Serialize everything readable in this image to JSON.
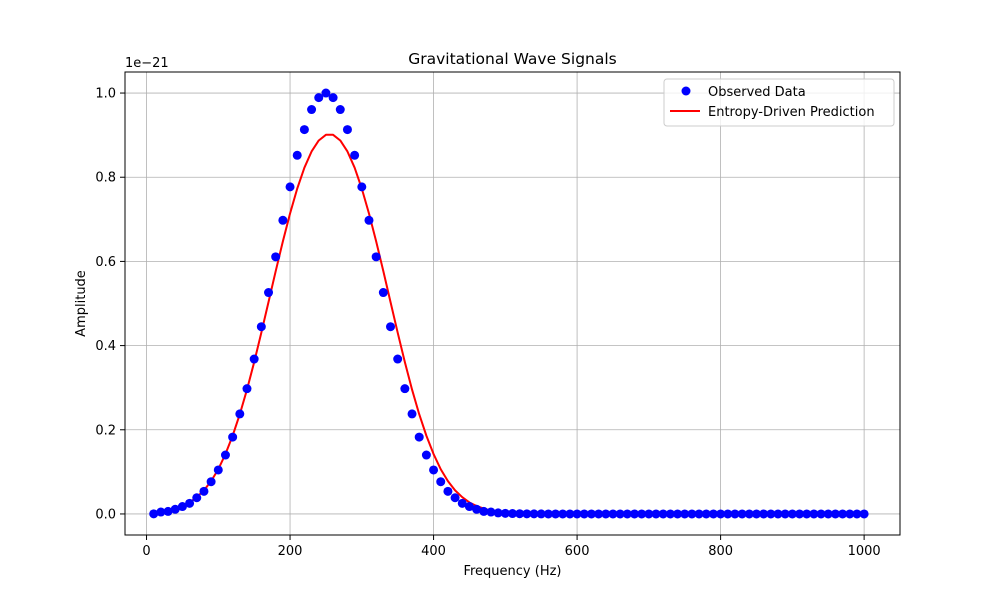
{
  "chart_data": {
    "type": "line",
    "title": "Gravitational Wave Signals",
    "xlabel": "Frequency (Hz)",
    "ylabel": "Amplitude",
    "y_offset_label": "1e−21",
    "xlim": [
      -30,
      1050
    ],
    "ylim": [
      -0.05,
      1.05
    ],
    "x_ticks": [
      0,
      200,
      400,
      600,
      800,
      1000
    ],
    "x_tick_labels": [
      "0",
      "200",
      "400",
      "600",
      "800",
      "1000"
    ],
    "y_ticks": [
      0.0,
      0.2,
      0.4,
      0.6,
      0.8,
      1.0
    ],
    "y_tick_labels": [
      "0.0",
      "0.2",
      "0.4",
      "0.6",
      "0.8",
      "1.0"
    ],
    "grid": true,
    "legend_position": "upper right",
    "series": [
      {
        "name": "Observed Data",
        "style": "markers",
        "color": "#0000ff",
        "x": [
          10,
          20,
          30,
          40,
          50,
          60,
          70,
          80,
          90,
          100,
          110,
          120,
          130,
          140,
          150,
          160,
          170,
          180,
          190,
          200,
          210,
          220,
          230,
          240,
          250,
          260,
          270,
          280,
          290,
          300,
          310,
          320,
          330,
          340,
          350,
          360,
          370,
          380,
          390,
          400,
          410,
          420,
          430,
          440,
          450,
          460,
          470,
          480,
          490,
          500,
          510,
          520,
          530,
          540,
          550,
          560,
          570,
          580,
          590,
          600,
          610,
          620,
          630,
          640,
          650,
          660,
          670,
          680,
          690,
          700,
          710,
          720,
          730,
          740,
          750,
          760,
          770,
          780,
          790,
          800,
          810,
          820,
          830,
          840,
          850,
          860,
          870,
          880,
          890,
          900,
          910,
          920,
          930,
          940,
          950,
          960,
          970,
          980,
          990,
          1000
        ],
        "y": [
          0.0003,
          0.0045,
          0.0061,
          0.0111,
          0.0176,
          0.0252,
          0.0385,
          0.0537,
          0.0766,
          0.1045,
          0.14,
          0.1826,
          0.2377,
          0.2977,
          0.3681,
          0.4449,
          0.5261,
          0.6109,
          0.6977,
          0.7771,
          0.8521,
          0.9132,
          0.9608,
          0.9891,
          1.0,
          0.9891,
          0.9608,
          0.9132,
          0.8521,
          0.7771,
          0.6977,
          0.6109,
          0.5261,
          0.4449,
          0.3681,
          0.2977,
          0.2377,
          0.1826,
          0.14,
          0.1045,
          0.0766,
          0.0537,
          0.0385,
          0.0252,
          0.0176,
          0.0111,
          0.0061,
          0.0045,
          0.0025,
          0.0015,
          0.001,
          0.0005,
          0.0003,
          0.0002,
          0.0001,
          0,
          0,
          0,
          0,
          0,
          0,
          0,
          0,
          0,
          0,
          0,
          0,
          0,
          0,
          0,
          0,
          0,
          0,
          0,
          0,
          0,
          0,
          0,
          0,
          0,
          0,
          0,
          0,
          0,
          0,
          0,
          0,
          0,
          0,
          0,
          0,
          0,
          0,
          0,
          0,
          0,
          0,
          0,
          0,
          0
        ]
      },
      {
        "name": "Entropy-Driven Prediction",
        "style": "line",
        "color": "#ff0000",
        "x": [
          10,
          20,
          30,
          40,
          50,
          60,
          70,
          80,
          90,
          100,
          110,
          120,
          130,
          140,
          150,
          160,
          170,
          180,
          190,
          200,
          210,
          220,
          230,
          240,
          250,
          260,
          270,
          280,
          290,
          300,
          310,
          320,
          330,
          340,
          350,
          360,
          370,
          380,
          390,
          400,
          410,
          420,
          430,
          440,
          450,
          460,
          470,
          480,
          490,
          500,
          510,
          520,
          530,
          540,
          550,
          560,
          570,
          580,
          590,
          600,
          610,
          620,
          630,
          640,
          650,
          660,
          670,
          680,
          690,
          700,
          710,
          720,
          730,
          740,
          750,
          760,
          770,
          780,
          790,
          800,
          810,
          820,
          830,
          840,
          850,
          860,
          870,
          880,
          890,
          900,
          910,
          920,
          930,
          940,
          950,
          960,
          970,
          980,
          990,
          1000
        ],
        "y": [
          0.003,
          0.0057,
          0.0078,
          0.0127,
          0.0188,
          0.0273,
          0.0398,
          0.0561,
          0.0779,
          0.1062,
          0.1424,
          0.1858,
          0.2369,
          0.2955,
          0.3606,
          0.4307,
          0.5036,
          0.5768,
          0.6477,
          0.7139,
          0.7729,
          0.8226,
          0.8612,
          0.8873,
          0.9008,
          0.9008,
          0.8873,
          0.8612,
          0.8226,
          0.7729,
          0.7139,
          0.6477,
          0.5768,
          0.5036,
          0.4307,
          0.3606,
          0.2955,
          0.2369,
          0.1858,
          0.1424,
          0.1062,
          0.0779,
          0.0561,
          0.0398,
          0.0273,
          0.0188,
          0.0127,
          0.0078,
          0.005,
          0.003,
          0.002,
          0.0012,
          0.0007,
          0.0004,
          0.0002,
          0.0001,
          0,
          0,
          0,
          0,
          0,
          0,
          0,
          0,
          0,
          0,
          0,
          0,
          0,
          0,
          0,
          0,
          0,
          0,
          0,
          0,
          0,
          0,
          0,
          0,
          0,
          0,
          0,
          0,
          0,
          0,
          0,
          0,
          0,
          0,
          0,
          0,
          0,
          0,
          0,
          0,
          0,
          0,
          0,
          0
        ]
      }
    ]
  }
}
